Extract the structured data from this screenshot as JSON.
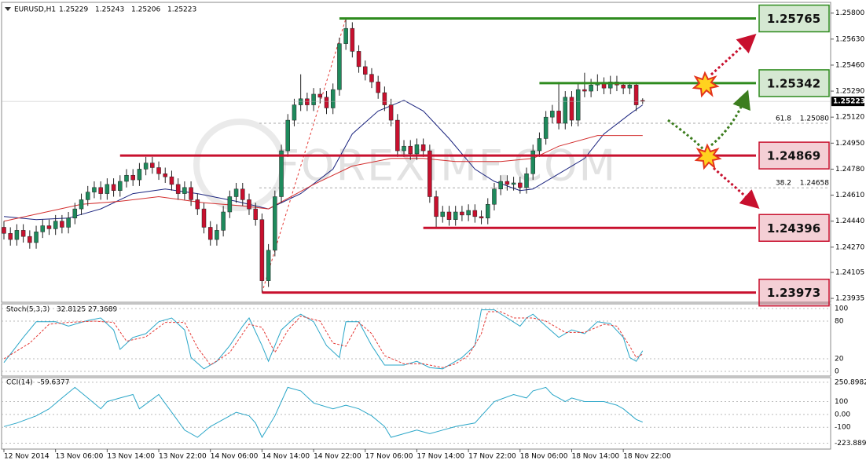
{
  "chart_data": {
    "type": "candlestick",
    "title": "EURUSD,H1",
    "watermark": "FOREXIMF.COM",
    "bull_color": "#1e8a5c",
    "bear_color": "#c8102e",
    "ylim": [
      1.2392,
      1.2586
    ],
    "yticks": [
      {
        "value": 1.258,
        "label": "1.25800"
      },
      {
        "value": 1.2563,
        "label": "1.25630"
      },
      {
        "value": 1.2546,
        "label": "1.25460"
      },
      {
        "value": 1.2529,
        "label": "1.25290"
      },
      {
        "value": 1.2512,
        "label": "1.25120"
      },
      {
        "value": 1.2495,
        "label": "1.24950"
      },
      {
        "value": 1.2478,
        "label": "1.24780"
      },
      {
        "value": 1.2461,
        "label": "1.24610"
      },
      {
        "value": 1.2444,
        "label": "1.24440"
      },
      {
        "value": 1.2427,
        "label": "1.24270"
      },
      1.24105,
      1.23935
    ],
    "xticks": [
      {
        "value": 0,
        "label": "12 Nov 2014"
      },
      {
        "value": 8,
        "label": "13 Nov 06:00"
      },
      {
        "value": 16,
        "label": "13 Nov 14:00"
      },
      {
        "value": 24,
        "label": "13 Nov 22:00"
      },
      {
        "value": 32,
        "label": "14 Nov 06:00"
      },
      {
        "value": 40,
        "label": "14 Nov 14:00"
      },
      {
        "value": 48,
        "label": "14 Nov 22:00"
      },
      {
        "value": 56,
        "label": "17 Nov 06:00"
      },
      {
        "value": 64,
        "label": "17 Nov 14:00"
      },
      {
        "value": 72,
        "label": "17 Nov 22:00"
      },
      {
        "value": 80,
        "label": "18 Nov 06:00"
      },
      {
        "value": 88,
        "label": "18 Nov 14:00"
      },
      {
        "value": 96,
        "label": "18 Nov 22:00"
      }
    ],
    "open": [
      1.244,
      1.2436,
      1.2432,
      1.2438,
      1.2434,
      1.243,
      1.2437,
      1.2441,
      1.2439,
      1.2444,
      1.244,
      1.2446,
      1.2452,
      1.2458,
      1.2463,
      1.2466,
      1.2462,
      1.2468,
      1.2464,
      1.247,
      1.2474,
      1.2471,
      1.2478,
      1.2482,
      1.2479,
      1.2475,
      1.2473,
      1.2468,
      1.2462,
      1.2466,
      1.2458,
      1.2452,
      1.244,
      1.2432,
      1.2438,
      1.245,
      1.246,
      1.2465,
      1.2458,
      1.2452,
      1.2445,
      1.2405,
      1.2425,
      1.246,
      1.249,
      1.251,
      1.252,
      1.2524,
      1.252,
      1.2527,
      1.2525,
      1.2518,
      1.253,
      1.256,
      1.257,
      1.2555,
      1.2545,
      1.254,
      1.2535,
      1.2528,
      1.252,
      1.251,
      1.249,
      1.2493,
      1.2488,
      1.2494,
      1.249,
      1.246,
      1.2447,
      1.245,
      1.2445,
      1.245,
      1.2448,
      1.2451,
      1.2447,
      1.2446,
      1.2455,
      1.2465,
      1.247,
      1.2468,
      1.2469,
      1.2466,
      1.2475,
      1.249,
      1.2498,
      1.2512,
      1.2516,
      1.2508,
      1.2525,
      1.251,
      1.253,
      1.2529,
      1.2533,
      1.2534,
      1.2531,
      1.2535,
      1.2533,
      1.2531,
      1.2533,
      1.25229
    ],
    "high": [
      1.2444,
      1.244,
      1.2442,
      1.2442,
      1.2438,
      1.2441,
      1.2445,
      1.2445,
      1.2448,
      1.2448,
      1.245,
      1.2456,
      1.2462,
      1.2467,
      1.247,
      1.247,
      1.2472,
      1.2472,
      1.2474,
      1.2478,
      1.2478,
      1.2482,
      1.2486,
      1.2486,
      1.2483,
      1.2479,
      1.2477,
      1.2472,
      1.247,
      1.247,
      1.2462,
      1.2456,
      1.2444,
      1.2442,
      1.2454,
      1.2464,
      1.2469,
      1.2469,
      1.2462,
      1.2456,
      1.2449,
      1.2429,
      1.2464,
      1.2494,
      1.2514,
      1.2524,
      1.254,
      1.2528,
      1.2531,
      1.2531,
      1.2529,
      1.2534,
      1.2564,
      1.25765,
      1.2574,
      1.2559,
      1.2549,
      1.2544,
      1.2539,
      1.2532,
      1.2524,
      1.2514,
      1.2497,
      1.2497,
      1.2498,
      1.2498,
      1.2494,
      1.2464,
      1.2454,
      1.2454,
      1.2454,
      1.2454,
      1.2455,
      1.2455,
      1.2451,
      1.2459,
      1.2469,
      1.2474,
      1.2474,
      1.2473,
      1.2473,
      1.2479,
      1.2494,
      1.2502,
      1.2516,
      1.252,
      1.2535,
      1.2529,
      1.2529,
      1.2534,
      1.2541,
      1.2537,
      1.254,
      1.2538,
      1.2539,
      1.2539,
      1.2535,
      1.2535,
      1.2535,
      1.25243
    ],
    "low": [
      1.2432,
      1.2428,
      1.2428,
      1.243,
      1.2426,
      1.2426,
      1.2433,
      1.2435,
      1.2435,
      1.2436,
      1.2436,
      1.2442,
      1.2448,
      1.2454,
      1.2459,
      1.2458,
      1.2458,
      1.246,
      1.246,
      1.2466,
      1.2467,
      1.2467,
      1.2474,
      1.2475,
      1.2471,
      1.2469,
      1.2464,
      1.2458,
      1.2458,
      1.2454,
      1.2448,
      1.2436,
      1.2428,
      1.2428,
      1.2434,
      1.2446,
      1.2456,
      1.2454,
      1.2448,
      1.2441,
      1.23973,
      1.2401,
      1.2421,
      1.2456,
      1.2486,
      1.2506,
      1.2516,
      1.2516,
      1.2516,
      1.2521,
      1.2514,
      1.2514,
      1.2526,
      1.2556,
      1.2551,
      1.2541,
      1.2536,
      1.2531,
      1.2524,
      1.2516,
      1.2506,
      1.2486,
      1.2486,
      1.2484,
      1.2484,
      1.2486,
      1.2456,
      1.24396,
      1.2443,
      1.2441,
      1.2441,
      1.2444,
      1.2444,
      1.2443,
      1.2442,
      1.2442,
      1.2451,
      1.2461,
      1.2464,
      1.2464,
      1.2462,
      1.2462,
      1.2471,
      1.2486,
      1.2494,
      1.2508,
      1.2504,
      1.2504,
      1.2506,
      1.2506,
      1.2525,
      1.2525,
      1.2529,
      1.2527,
      1.2527,
      1.2529,
      1.2527,
      1.2527,
      1.2516,
      1.25206
    ],
    "close": [
      1.2436,
      1.2432,
      1.2438,
      1.2434,
      1.243,
      1.2437,
      1.2441,
      1.2439,
      1.2444,
      1.244,
      1.2446,
      1.2452,
      1.2458,
      1.2463,
      1.2466,
      1.2462,
      1.2468,
      1.2464,
      1.247,
      1.2474,
      1.2471,
      1.2478,
      1.2482,
      1.2479,
      1.2475,
      1.2473,
      1.2468,
      1.2462,
      1.2466,
      1.2458,
      1.2452,
      1.244,
      1.2432,
      1.2438,
      1.245,
      1.246,
      1.2465,
      1.2458,
      1.2452,
      1.2445,
      1.2405,
      1.2425,
      1.246,
      1.249,
      1.251,
      1.252,
      1.2524,
      1.252,
      1.2527,
      1.2525,
      1.2518,
      1.253,
      1.256,
      1.257,
      1.2555,
      1.2545,
      1.254,
      1.2535,
      1.2528,
      1.252,
      1.251,
      1.249,
      1.2493,
      1.2488,
      1.2494,
      1.249,
      1.246,
      1.2447,
      1.245,
      1.2445,
      1.245,
      1.2448,
      1.2451,
      1.2447,
      1.2446,
      1.2455,
      1.2465,
      1.247,
      1.2468,
      1.2469,
      1.2466,
      1.2475,
      1.249,
      1.2498,
      1.2512,
      1.2516,
      1.2508,
      1.2525,
      1.251,
      1.253,
      1.2529,
      1.2533,
      1.2534,
      1.2531,
      1.2535,
      1.2533,
      1.2531,
      1.2533,
      1.252,
      1.25223
    ],
    "moving_averages": [
      {
        "color": "#1a237e",
        "x": [
          0,
          5,
          10,
          15,
          20,
          25,
          30,
          36,
          41,
          46,
          51,
          54,
          58,
          62,
          65,
          69,
          73,
          76,
          80,
          82,
          86,
          90,
          93,
          97,
          99
        ],
        "values": [
          1.2447,
          1.2445,
          1.2446,
          1.2452,
          1.2462,
          1.2465,
          1.2462,
          1.2457,
          1.2452,
          1.2462,
          1.2478,
          1.2501,
          1.2516,
          1.2523,
          1.2516,
          1.2498,
          1.2478,
          1.247,
          1.2464,
          1.2465,
          1.2475,
          1.2485,
          1.2501,
          1.2514,
          1.252
        ]
      },
      {
        "color": "#d32f2f",
        "x": [
          0,
          12,
          18,
          24,
          31,
          37,
          41,
          48,
          54,
          60,
          65,
          70,
          77,
          82,
          86,
          92,
          99
        ],
        "values": [
          1.2444,
          1.2455,
          1.2457,
          1.246,
          1.2456,
          1.2454,
          1.2452,
          1.2468,
          1.248,
          1.2485,
          1.2485,
          1.2483,
          1.2483,
          1.2485,
          1.2493,
          1.25,
          1.25
        ]
      }
    ],
    "levels": [
      {
        "value": 1.25765,
        "color": "#2e8b1e",
        "x_start": 52
      },
      {
        "value": 1.25342,
        "color": "#2e8b1e",
        "x_start": 83
      },
      {
        "value": 1.24869,
        "color": "#c8102e",
        "x_start": 18
      },
      {
        "value": 1.24396,
        "color": "#c8102e",
        "x_start": 65
      },
      {
        "value": 1.23973,
        "color": "#c8102e",
        "x_start": 40
      }
    ],
    "fibonacci": [
      {
        "level": 61.8,
        "price": {
          "value": 1.2508,
          "label": "1.25080"
        }
      },
      {
        "level": 38.2,
        "price": 1.24658
      }
    ],
    "indicators": [
      {
        "title": "Stoch(5,3,3)",
        "ylim": [
          0,
          100
        ],
        "yticks": [
          100,
          80,
          20,
          0
        ],
        "grid": true,
        "series": [
          {
            "color": "#2aa6c8",
            "dash": false,
            "x": [
              0,
              3,
              5,
              8,
              10,
              13,
              15,
              17,
              18,
              20,
              22,
              24,
              26,
              28,
              29,
              31,
              33,
              35,
              37,
              38,
              40,
              41,
              43,
              45,
              46,
              48,
              50,
              52,
              53,
              55,
              57,
              59,
              62,
              64,
              66,
              68,
              70,
              71,
              73,
              74,
              76,
              78,
              80,
              81,
              82,
              84,
              86,
              88,
              90,
              92,
              94,
              96,
              97,
              98,
              99
            ],
            "values": [
              14,
              54,
              79,
              79,
              72,
              81,
              85,
              66,
              35,
              54,
              60,
              79,
              85,
              66,
              22,
              4,
              16,
              41,
              72,
              85,
              41,
              16,
              66,
              85,
              91,
              79,
              41,
              22,
              79,
              79,
              41,
              10,
              10,
              16,
              6,
              4,
              16,
              22,
              41,
              98,
              98,
              85,
              72,
              85,
              91,
              72,
              54,
              66,
              60,
              79,
              76,
              54,
              22,
              16,
              32.8125
            ]
          },
          {
            "color": "#e53935",
            "dash": true,
            "x": [
              0,
              4,
              7,
              10,
              14,
              17,
              19,
              22,
              25,
              28,
              30,
              32,
              35,
              38,
              40,
              42,
              44,
              46,
              49,
              51,
              53,
              55,
              57,
              59,
              62,
              65,
              68,
              70,
              72,
              74,
              75,
              77,
              79,
              82,
              84,
              87,
              90,
              93,
              95,
              97,
              98,
              99
            ],
            "values": [
              20,
              45,
              75,
              78,
              80,
              78,
              48,
              55,
              78,
              78,
              38,
              10,
              30,
              75,
              70,
              30,
              65,
              88,
              80,
              45,
              40,
              78,
              60,
              25,
              12,
              12,
              6,
              12,
              25,
              60,
              95,
              95,
              85,
              85,
              80,
              62,
              62,
              75,
              72,
              40,
              22,
              27.3689
            ]
          }
        ]
      },
      {
        "title": "CCI(14)",
        "ylim": [
          -233,
          256
        ],
        "yticks": [
          250.8982,
          100,
          {
            "value": 0,
            "label": "0.00"
          },
          -100,
          -223.8891
        ],
        "grid": true,
        "series": [
          {
            "color": "#2aa6c8",
            "dash": false,
            "x": [
              0,
              2,
              5,
              7,
              9,
              11,
              13,
              15,
              16,
              18,
              20,
              21,
              24,
              26,
              28,
              30,
              32,
              35,
              36,
              38,
              39,
              40,
              42,
              43,
              44,
              46,
              48,
              51,
              53,
              55,
              57,
              59,
              60,
              62,
              64,
              66,
              68,
              70,
              73,
              74,
              76,
              79,
              81,
              82,
              84,
              85,
              87,
              88,
              90,
              93,
              95,
              96,
              98,
              99
            ],
            "values": [
              -94,
              -67,
              -11,
              44,
              128,
              211,
              128,
              44,
              100,
              128,
              155,
              44,
              155,
              17,
              -122,
              -178,
              -94,
              -11,
              17,
              -11,
              -67,
              -178,
              -11,
              100,
              211,
              183,
              89,
              44,
              72,
              44,
              -11,
              -94,
              -178,
              -150,
              -122,
              -150,
              -122,
              -94,
              -67,
              -11,
              100,
              155,
              128,
              183,
              211,
              155,
              100,
              128,
              100,
              100,
              72,
              44,
              -39,
              -59.6377
            ]
          }
        ]
      }
    ]
  }
}
